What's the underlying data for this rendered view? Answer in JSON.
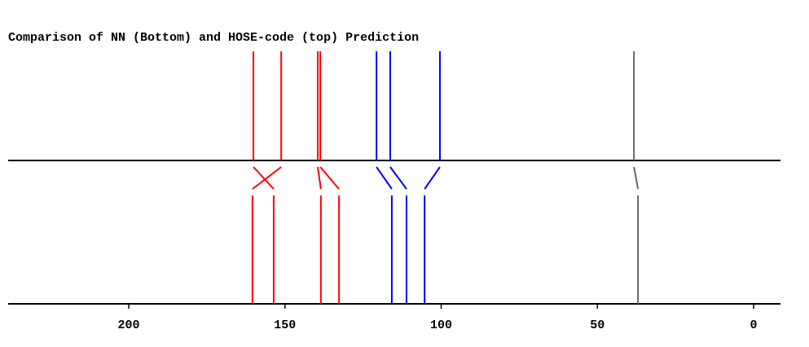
{
  "chart_data": {
    "type": "peak-comparison",
    "title": "Comparison of NN (Bottom) and HOSE-code (top) Prediction",
    "top_values": [
      160.1,
      151.2,
      139.5,
      138.7,
      120.7,
      116.3,
      100.4,
      38.3
    ],
    "bottom_values": [
      153.6,
      160.4,
      138.5,
      132.7,
      115.8,
      111.1,
      105.3,
      37.0
    ],
    "colors": [
      "#ff0000",
      "#ff0000",
      "#ff0000",
      "#ff0000",
      "#0000ff",
      "#0000ff",
      "#0000ff",
      "#666666"
    ],
    "xlim": [
      238.6,
      -8.6
    ],
    "xticks": [
      200,
      150,
      100,
      50,
      0
    ]
  }
}
